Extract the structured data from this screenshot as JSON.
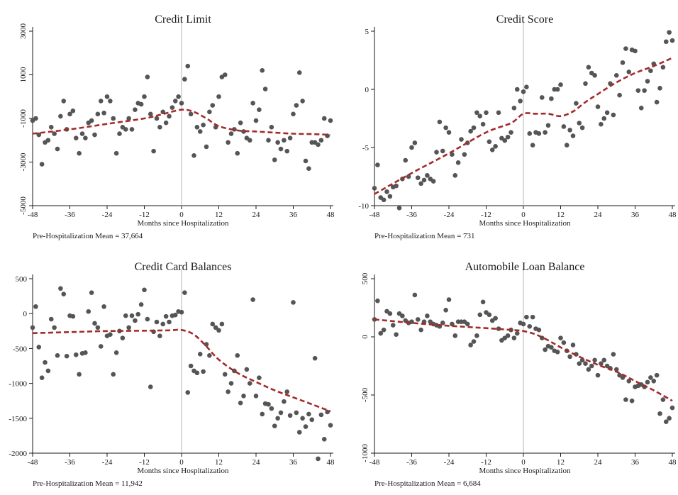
{
  "colors": {
    "points": "#555555",
    "fit": "#a52a2a",
    "cutoff": "#b5b5b5",
    "background": "#ffffff"
  },
  "chart_data": [
    {
      "type": "scatter",
      "title": "Credit Limit",
      "xlabel": "Months since Hospitalization",
      "ylabel": "",
      "note": "Pre-Hospitalization Mean = 37,664",
      "xlim": [
        -48,
        48
      ],
      "ylim": [
        -5000,
        3000
      ],
      "xticks": [
        -48,
        -36,
        -24,
        -12,
        0,
        12,
        24,
        36,
        48
      ],
      "yticks": [
        -5000,
        -3000,
        -1000,
        1000,
        3000
      ],
      "ytick_rotation": "vertical",
      "cutoff_x": 0,
      "points": {
        "x": [
          -48,
          -47,
          -46,
          -45,
          -44,
          -43,
          -42,
          -41,
          -40,
          -39,
          -38,
          -37,
          -36,
          -35,
          -34,
          -33,
          -32,
          -31,
          -30,
          -29,
          -28,
          -27,
          -26,
          -25,
          -24,
          -23,
          -22,
          -21,
          -20,
          -19,
          -18,
          -17,
          -16,
          -15,
          -14,
          -13,
          -12,
          -11,
          -10,
          -9,
          -8,
          -7,
          -6,
          -5,
          -4,
          -3,
          -2,
          -1,
          0,
          1,
          2,
          3,
          4,
          5,
          6,
          7,
          8,
          9,
          10,
          11,
          12,
          13,
          14,
          15,
          16,
          17,
          18,
          19,
          20,
          21,
          22,
          23,
          24,
          25,
          26,
          27,
          28,
          29,
          30,
          31,
          32,
          33,
          34,
          35,
          36,
          37,
          38,
          39,
          40,
          41,
          42,
          43,
          44,
          45,
          46,
          47,
          48
        ],
        "y": [
          -1100,
          -1000,
          -1750,
          -3100,
          -2100,
          -2000,
          -1400,
          -1700,
          -2400,
          -900,
          -200,
          -1500,
          -800,
          -650,
          -1900,
          -2600,
          -1700,
          -1900,
          -1200,
          -1100,
          -1750,
          -800,
          -200,
          -750,
          0,
          -200,
          -1000,
          -2600,
          -1700,
          -1400,
          -1500,
          -1000,
          -1500,
          -600,
          -300,
          -350,
          0,
          900,
          -800,
          -2500,
          -1000,
          -1400,
          -700,
          -1200,
          -900,
          -500,
          -200,
          0,
          -300,
          800,
          1400,
          -800,
          -2700,
          -1400,
          -1600,
          -1300,
          -2300,
          -700,
          -400,
          -1400,
          0,
          900,
          1000,
          -2100,
          -1700,
          -1500,
          -2600,
          -1200,
          -1600,
          -1900,
          -2000,
          -300,
          -1100,
          -600,
          1200,
          350,
          -2000,
          -1400,
          -2900,
          -2100,
          -2400,
          -2000,
          -2500,
          -1900,
          -800,
          -400,
          1100,
          -200,
          -2950,
          -3300,
          -2100,
          -2100,
          -2200,
          -2000,
          -1000,
          -1800,
          -1100
        ]
      },
      "fit": {
        "x": [
          -48,
          -36,
          -24,
          -12,
          -6,
          0,
          4,
          8,
          12,
          18,
          24,
          30,
          36,
          42,
          48
        ],
        "y": [
          -1700,
          -1500,
          -1250,
          -1000,
          -800,
          -600,
          -700,
          -1000,
          -1350,
          -1550,
          -1600,
          -1650,
          -1700,
          -1720,
          -1750
        ]
      }
    },
    {
      "type": "scatter",
      "title": "Credit Score",
      "xlabel": "Months since Hospitalization",
      "ylabel": "",
      "note": "Pre-Hospitalization Mean = 731",
      "xlim": [
        -48,
        48
      ],
      "ylim": [
        -10,
        5
      ],
      "xticks": [
        -48,
        -36,
        -24,
        -12,
        0,
        12,
        24,
        36,
        48
      ],
      "yticks": [
        -10,
        -5,
        0,
        5
      ],
      "ytick_rotation": "horizontal",
      "cutoff_x": 0,
      "points": {
        "x": [
          -48,
          -47,
          -46,
          -45,
          -44,
          -43,
          -42,
          -41,
          -40,
          -39,
          -38,
          -37,
          -36,
          -35,
          -34,
          -33,
          -32,
          -31,
          -30,
          -29,
          -28,
          -27,
          -26,
          -25,
          -24,
          -23,
          -22,
          -21,
          -20,
          -19,
          -18,
          -17,
          -16,
          -15,
          -14,
          -13,
          -12,
          -11,
          -10,
          -9,
          -8,
          -7,
          -6,
          -5,
          -4,
          -3,
          -2,
          -1,
          0,
          1,
          2,
          3,
          4,
          5,
          6,
          7,
          8,
          9,
          10,
          11,
          12,
          13,
          14,
          15,
          16,
          17,
          18,
          19,
          20,
          21,
          22,
          23,
          24,
          25,
          26,
          27,
          28,
          29,
          30,
          31,
          32,
          33,
          34,
          35,
          36,
          37,
          38,
          39,
          40,
          41,
          42,
          43,
          44,
          45,
          46,
          47,
          48
        ],
        "y": [
          -8.5,
          -6.5,
          -9.3,
          -9.5,
          -8.8,
          -9.2,
          -8.4,
          -8.3,
          -10.2,
          -7.7,
          -6.1,
          -7.5,
          -5.0,
          -4.6,
          -7.6,
          -8.1,
          -7.8,
          -7.4,
          -7.7,
          -7.9,
          -5.4,
          -2.8,
          -5.3,
          -3.3,
          -3.7,
          -5.6,
          -7.4,
          -6.3,
          -4.3,
          -5.6,
          -4.6,
          -3.6,
          -3.3,
          -2.0,
          -2.3,
          -3.0,
          -2.0,
          -4.5,
          -5.2,
          -4.9,
          -2.0,
          -4.2,
          -4.4,
          -4.1,
          -3.7,
          -1.6,
          0.0,
          -1.0,
          -0.2,
          0.2,
          -3.8,
          -4.8,
          -3.7,
          -3.8,
          -0.7,
          -3.7,
          -3.1,
          -0.8,
          0.0,
          0.0,
          0.4,
          -3.2,
          -4.8,
          -3.5,
          -4.0,
          -1.2,
          -2.9,
          -3.3,
          0.5,
          1.9,
          1.4,
          1.2,
          -1.5,
          -3.0,
          -2.5,
          -2.0,
          0.5,
          -2.2,
          1.2,
          -0.5,
          2.3,
          3.5,
          1.5,
          3.4,
          3.3,
          -0.1,
          -1.6,
          -0.1,
          0.7,
          1.6,
          2.2,
          -1.1,
          0.1,
          1.9,
          4.1,
          4.9,
          4.2
        ]
      },
      "fit": {
        "x": [
          -48,
          -36,
          -24,
          -12,
          -4,
          0,
          4,
          8,
          12,
          16,
          20,
          24,
          30,
          36,
          42,
          48
        ],
        "y": [
          -9.0,
          -7.2,
          -5.5,
          -3.7,
          -2.9,
          -2.1,
          -2.1,
          -2.1,
          -2.3,
          -1.9,
          -1.1,
          -0.4,
          0.6,
          1.4,
          2.0,
          2.7
        ]
      }
    },
    {
      "type": "scatter",
      "title": "Credit Card Balances",
      "xlabel": "Months since Hospitalization",
      "ylabel": "",
      "note": "Pre-Hospitalization Mean = 11,942",
      "xlim": [
        -48,
        48
      ],
      "ylim": [
        -2000,
        500
      ],
      "xticks": [
        -48,
        -36,
        -24,
        -12,
        0,
        12,
        24,
        36,
        48
      ],
      "yticks": [
        -2000,
        -1500,
        -1000,
        -500,
        0,
        500
      ],
      "ytick_rotation": "horizontal",
      "cutoff_x": 0,
      "points": {
        "x": [
          -48,
          -47,
          -46,
          -45,
          -44,
          -43,
          -42,
          -41,
          -40,
          -39,
          -38,
          -37,
          -36,
          -35,
          -34,
          -33,
          -32,
          -31,
          -30,
          -29,
          -28,
          -27,
          -26,
          -25,
          -24,
          -23,
          -22,
          -21,
          -20,
          -19,
          -18,
          -17,
          -16,
          -15,
          -14,
          -13,
          -12,
          -11,
          -10,
          -9,
          -8,
          -7,
          -6,
          -5,
          -4,
          -3,
          -2,
          -1,
          0,
          1,
          2,
          3,
          4,
          5,
          6,
          7,
          8,
          9,
          10,
          11,
          12,
          13,
          14,
          15,
          16,
          17,
          18,
          19,
          20,
          21,
          22,
          23,
          24,
          25,
          26,
          27,
          28,
          29,
          30,
          31,
          32,
          33,
          34,
          35,
          36,
          37,
          38,
          39,
          40,
          41,
          42,
          43,
          44,
          45,
          46,
          47,
          48
        ],
        "y": [
          -200,
          100,
          -480,
          -920,
          -700,
          -820,
          -80,
          -200,
          -600,
          360,
          280,
          -610,
          -30,
          -40,
          -590,
          -870,
          -570,
          -560,
          30,
          300,
          -140,
          -200,
          -470,
          100,
          -320,
          -300,
          -870,
          -560,
          -250,
          -350,
          -30,
          -200,
          -30,
          -100,
          -10,
          130,
          340,
          -80,
          -1050,
          -260,
          -120,
          -320,
          -150,
          -40,
          -120,
          -30,
          -20,
          30,
          20,
          300,
          -1130,
          -750,
          -820,
          -850,
          -580,
          -830,
          -440,
          -600,
          -150,
          -200,
          -240,
          -150,
          -870,
          -1120,
          -1000,
          -820,
          -600,
          -1280,
          -1180,
          -800,
          -1000,
          200,
          -1180,
          -920,
          -1440,
          -1290,
          -1300,
          -1360,
          -1610,
          -1500,
          -1420,
          -1260,
          -1120,
          -1460,
          160,
          -1420,
          -1700,
          -1500,
          -1620,
          -1440,
          -1520,
          -640,
          -2080,
          -1450,
          -1800,
          -1410,
          -1600
        ]
      },
      "fit": {
        "x": [
          -48,
          -36,
          -24,
          -12,
          -4,
          0,
          4,
          8,
          12,
          18,
          24,
          30,
          36,
          42,
          48
        ],
        "y": [
          -280,
          -265,
          -250,
          -245,
          -240,
          -235,
          -300,
          -470,
          -660,
          -850,
          -980,
          -1100,
          -1200,
          -1300,
          -1400
        ]
      }
    },
    {
      "type": "scatter",
      "title": "Automobile Loan Balance",
      "xlabel": "Months since Hospitalization",
      "ylabel": "",
      "note": "Pre-Hospitalization Mean = 6,684",
      "xlim": [
        -48,
        48
      ],
      "ylim": [
        -1000,
        500
      ],
      "xticks": [
        -48,
        -36,
        -24,
        -12,
        0,
        12,
        24,
        36,
        48
      ],
      "yticks": [
        -1000,
        -500,
        0,
        500
      ],
      "ytick_rotation": "vertical",
      "cutoff_x": 0,
      "points": {
        "x": [
          -48,
          -47,
          -46,
          -45,
          -44,
          -43,
          -42,
          -41,
          -40,
          -39,
          -38,
          -37,
          -36,
          -35,
          -34,
          -33,
          -32,
          -31,
          -30,
          -29,
          -28,
          -27,
          -26,
          -25,
          -24,
          -23,
          -22,
          -21,
          -20,
          -19,
          -18,
          -17,
          -16,
          -15,
          -14,
          -13,
          -12,
          -11,
          -10,
          -9,
          -8,
          -7,
          -6,
          -5,
          -4,
          -3,
          -2,
          -1,
          0,
          1,
          2,
          3,
          4,
          5,
          6,
          7,
          8,
          9,
          10,
          11,
          12,
          13,
          14,
          15,
          16,
          17,
          18,
          19,
          20,
          21,
          22,
          23,
          24,
          25,
          26,
          27,
          28,
          29,
          30,
          31,
          32,
          33,
          34,
          35,
          36,
          37,
          38,
          39,
          40,
          41,
          42,
          43,
          44,
          45,
          46,
          47,
          48
        ],
        "y": [
          150,
          310,
          30,
          60,
          220,
          200,
          100,
          20,
          200,
          180,
          140,
          120,
          130,
          360,
          150,
          60,
          130,
          180,
          130,
          110,
          100,
          90,
          120,
          230,
          320,
          110,
          10,
          130,
          130,
          130,
          110,
          -70,
          -40,
          10,
          190,
          300,
          210,
          190,
          140,
          160,
          70,
          -30,
          -10,
          10,
          60,
          -10,
          30,
          120,
          110,
          170,
          90,
          170,
          70,
          60,
          -10,
          -110,
          -80,
          -90,
          -120,
          -130,
          -10,
          -50,
          -120,
          -170,
          -70,
          -150,
          -230,
          -200,
          -230,
          -280,
          -250,
          -200,
          -330,
          -230,
          -200,
          -250,
          -270,
          -150,
          -280,
          -330,
          -350,
          -540,
          -380,
          -550,
          -430,
          -420,
          -410,
          -430,
          -390,
          -350,
          -380,
          -330,
          -660,
          -540,
          -730,
          -700,
          -610
        ]
      },
      "fit": {
        "x": [
          -48,
          -36,
          -24,
          -12,
          -4,
          0,
          4,
          8,
          12,
          18,
          24,
          30,
          36,
          42,
          48
        ],
        "y": [
          150,
          120,
          95,
          75,
          60,
          50,
          20,
          -30,
          -90,
          -170,
          -240,
          -300,
          -380,
          -460,
          -550
        ]
      }
    }
  ]
}
